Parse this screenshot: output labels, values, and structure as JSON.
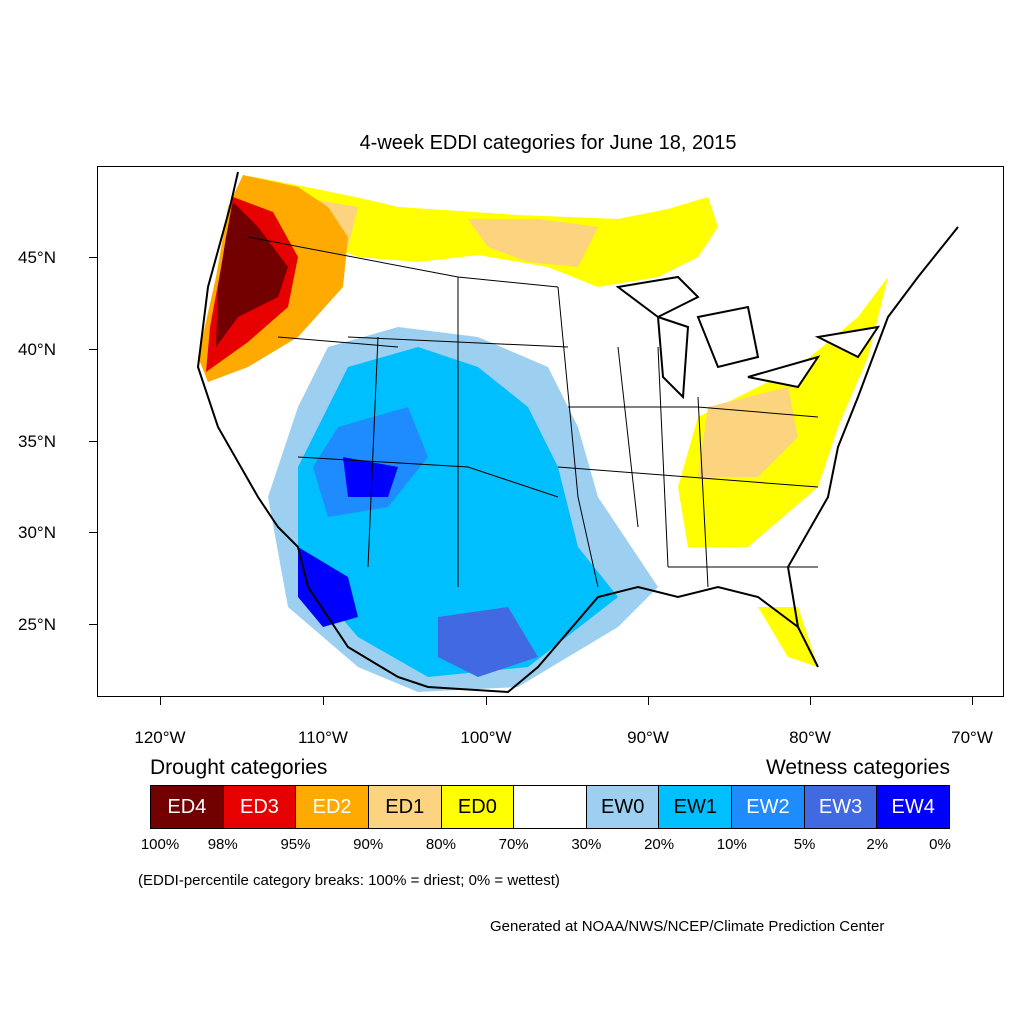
{
  "title": "4-week EDDI categories for June 18, 2015",
  "lat_labels": [
    "45°N",
    "40°N",
    "35°N",
    "30°N",
    "25°N"
  ],
  "lon_labels": [
    "120°W",
    "110°W",
    "100°W",
    "90°W",
    "80°W",
    "70°W"
  ],
  "legend": {
    "drought_heading": "Drought categories",
    "wetness_heading": "Wetness categories",
    "categories": [
      {
        "label": "ED4",
        "color": "#730000",
        "text_color": "#ffffff"
      },
      {
        "label": "ED3",
        "color": "#e60000",
        "text_color": "#ffffff"
      },
      {
        "label": "ED2",
        "color": "#ffaa00",
        "text_color": "#ffffff"
      },
      {
        "label": "ED1",
        "color": "#fcd37f",
        "text_color": "#000000"
      },
      {
        "label": "ED0",
        "color": "#ffff00",
        "text_color": "#000000"
      },
      {
        "label": "",
        "color": "#ffffff",
        "text_color": "#000000"
      },
      {
        "label": "EW0",
        "color": "#9dd0f0",
        "text_color": "#000000"
      },
      {
        "label": "EW1",
        "color": "#00bfff",
        "text_color": "#000000"
      },
      {
        "label": "EW2",
        "color": "#1e8cff",
        "text_color": "#ffffff"
      },
      {
        "label": "EW3",
        "color": "#4169e1",
        "text_color": "#ffffff"
      },
      {
        "label": "EW4",
        "color": "#0000ff",
        "text_color": "#ffffff"
      }
    ],
    "breaks": [
      "100%",
      "98%",
      "95%",
      "90%",
      "80%",
      "70%",
      "30%",
      "20%",
      "10%",
      "5%",
      "2%",
      "0%"
    ]
  },
  "note": "(EDDI-percentile category breaks: 100% = driest; 0% = wettest)",
  "credit": "Generated at NOAA/NWS/NCEP/Climate Prediction Center"
}
